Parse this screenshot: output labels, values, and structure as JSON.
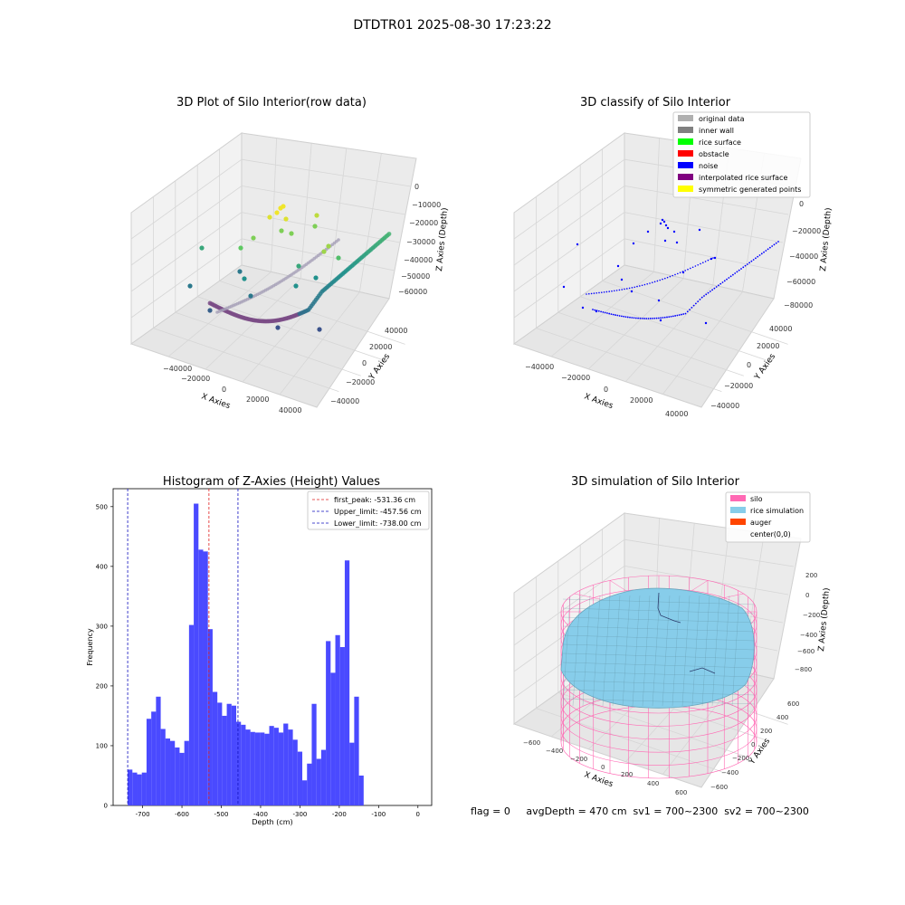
{
  "figure_title": "DTDTR01 2025-08-30 17:23:22",
  "colors": {
    "hist": "#4a4aff",
    "first_peak_line": "#e02020",
    "limit_line": "#1010c0",
    "silo": "#ff69b4",
    "rice": "#87cdea",
    "auger": "#ff4500",
    "pane": "#f2f2f2",
    "grid": "#d6d6d6"
  },
  "chart_data": [
    {
      "type": "scatter",
      "title": "3D Plot of Silo Interior(row data)",
      "xlabel": "X Axies",
      "ylabel": "Y Axies",
      "zlabel": "Z Axies (Depth)",
      "xticks": [
        "−40000",
        "−20000",
        "0",
        "20000",
        "40000"
      ],
      "yticks": [
        "−40000",
        "−20000",
        "0",
        "20000",
        "40000"
      ],
      "zticks": [
        "0",
        "−10000",
        "−20000",
        "−30000",
        "−40000",
        "−50000",
        "−60000"
      ],
      "colormap": "viridis",
      "grid": true
    },
    {
      "type": "scatter",
      "title": "3D classify of Silo Interior",
      "xlabel": "X Axies",
      "ylabel": "Y Axies",
      "zlabel": "Z Axies (Depth)",
      "xticks": [
        "−40000",
        "−20000",
        "0",
        "20000",
        "40000"
      ],
      "yticks": [
        "−40000",
        "−20000",
        "0",
        "20000",
        "40000"
      ],
      "zticks": [
        "0",
        "−20000",
        "−40000",
        "−60000",
        "−80000"
      ],
      "legend_position": "top-right",
      "legend": [
        {
          "label": "original data",
          "color": "#b0b0b0"
        },
        {
          "label": "inner wall",
          "color": "#808080"
        },
        {
          "label": "rice surface",
          "color": "#00ff00"
        },
        {
          "label": "obstacle",
          "color": "#ff0000"
        },
        {
          "label": "noise",
          "color": "#0000ff"
        },
        {
          "label": "interpolated rice surface",
          "color": "#800080"
        },
        {
          "label": "symmetric generated points",
          "color": "#ffff00"
        }
      ],
      "grid": true
    },
    {
      "type": "bar",
      "title": "Histogram of Z-Axies (Height) Values",
      "xlabel": "Depth (cm)",
      "ylabel": "Frequency",
      "xlim": [
        -775,
        35
      ],
      "ylim": [
        0,
        530
      ],
      "xticks": [
        -700,
        -600,
        -500,
        -400,
        -300,
        -200,
        -100,
        0
      ],
      "yticks": [
        0,
        100,
        200,
        300,
        400,
        500
      ],
      "bin_start": -738,
      "bin_width": 12,
      "values": [
        60,
        55,
        52,
        55,
        145,
        157,
        182,
        128,
        112,
        108,
        97,
        88,
        108,
        302,
        505,
        428,
        425,
        295,
        190,
        172,
        150,
        170,
        167,
        140,
        135,
        127,
        123,
        122,
        122,
        120,
        133,
        130,
        122,
        137,
        127,
        110,
        90,
        42,
        70,
        170,
        78,
        93,
        275,
        222,
        285,
        265,
        410,
        105,
        182,
        50
      ],
      "vlines": [
        {
          "label": "first_peak: -531.36 cm",
          "x": -531.36,
          "color": "#e02020"
        },
        {
          "label": "Upper_limit: -457.56 cm",
          "x": -457.56,
          "color": "#1010c0"
        },
        {
          "label": "Lower_limit: -738.00 cm",
          "x": -738.0,
          "color": "#1010c0"
        }
      ],
      "legend_position": "top-right"
    },
    {
      "type": "surface",
      "title": "3D simulation of Silo Interior",
      "xlabel": "X Axies",
      "ylabel": "Y Axies",
      "zlabel": "Z Axies (Depth)",
      "xticks": [
        "−600",
        "−400",
        "−200",
        "0",
        "200",
        "400",
        "600"
      ],
      "yticks": [
        "−600",
        "−400",
        "−200",
        "0",
        "200",
        "400",
        "600"
      ],
      "zticks": [
        "200",
        "0",
        "−200",
        "−400",
        "−600",
        "−800"
      ],
      "legend_position": "top-right",
      "legend": [
        {
          "label": "silo",
          "color": "#ff69b4"
        },
        {
          "label": "rice simulation",
          "color": "#87cdea"
        },
        {
          "label": "auger",
          "color": "#ff4500"
        },
        {
          "label": "center(0,0)",
          "color": ""
        }
      ]
    }
  ],
  "status_line": "flag = 0     avgDepth = 470 cm  sv1 = 700~2300  sv2 = 700~2300"
}
